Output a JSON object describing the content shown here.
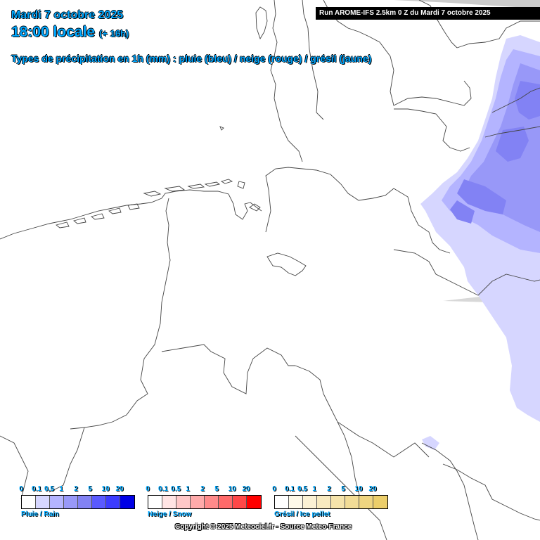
{
  "header": {
    "date": "Mardi 7 octobre 2025",
    "time": "18:00 locale",
    "lead": "(+ 16h)",
    "subtitle": "Types de précipitation en 1h (mm) : pluie (bleu) / neige (rouge) / grésil (jaune)"
  },
  "run_banner": "Run AROME-IFS 2.5km 0 Z du Mardi 7 octobre 2025",
  "legends": [
    {
      "name": "rain",
      "label": "Pluie / Rain",
      "ticks": [
        "0",
        "0.1",
        "0.5",
        "1",
        "2",
        "5",
        "10",
        "20"
      ],
      "colors": [
        "#ffffff",
        "#d6d6ff",
        "#b4b4ff",
        "#9898f8",
        "#8282f4",
        "#5a5aff",
        "#3c3cff",
        "#0000e6"
      ]
    },
    {
      "name": "snow",
      "label": "Neige / Snow",
      "ticks": [
        "0",
        "0.1",
        "0.5",
        "1",
        "2",
        "5",
        "10",
        "20"
      ],
      "colors": [
        "#ffffff",
        "#ffe4e4",
        "#ffc8c8",
        "#ffaaaa",
        "#ff8a8a",
        "#ff6a6a",
        "#ff4848",
        "#ff0000"
      ]
    },
    {
      "name": "sleet",
      "label": "Grésil / Ice pellet",
      "ticks": [
        "0",
        "0.1",
        "0.5",
        "1",
        "2",
        "5",
        "10",
        "20"
      ],
      "colors": [
        "#ffffff",
        "#fdf8e8",
        "#fbf1d4",
        "#f8eac0",
        "#f5e3aa",
        "#f2dc96",
        "#efd580",
        "#ecce6a"
      ]
    }
  ],
  "copyright": "Copyright © 2025 Meteociel.fr - Source Meteo-France"
}
